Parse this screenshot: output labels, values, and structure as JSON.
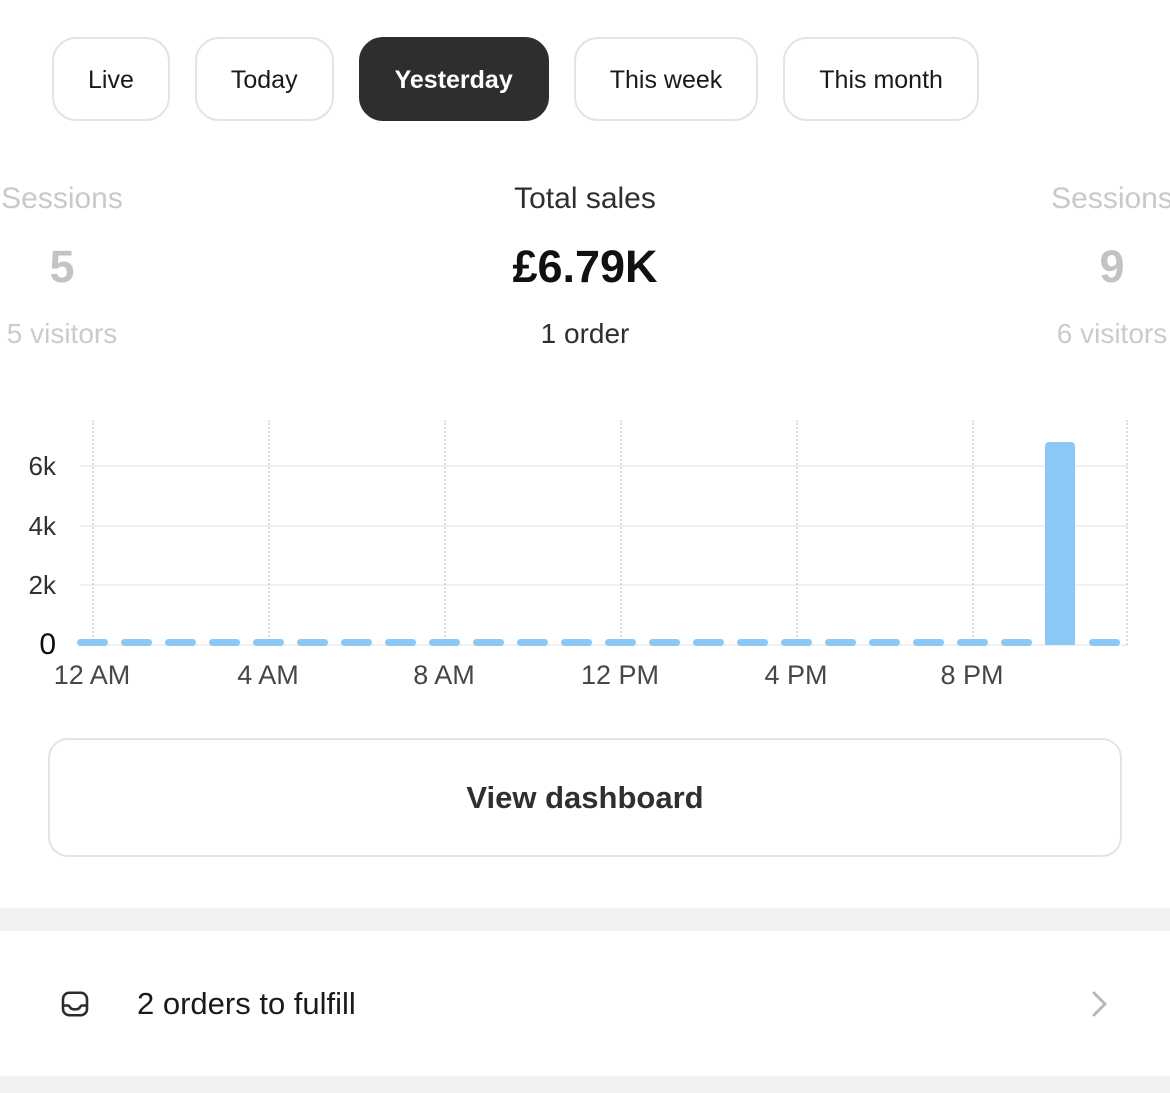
{
  "tabs": [
    {
      "label": "Live",
      "selected": false
    },
    {
      "label": "Today",
      "selected": false
    },
    {
      "label": "Yesterday",
      "selected": true
    },
    {
      "label": "This week",
      "selected": false
    },
    {
      "label": "This month",
      "selected": false
    }
  ],
  "metrics": {
    "left": {
      "label": "Sessions",
      "value": "5",
      "sub": "5 visitors"
    },
    "center": {
      "label": "Total sales",
      "value": "£6.79K",
      "sub": "1 order"
    },
    "right": {
      "label": "Sessions",
      "value": "9",
      "sub": "6 visitors"
    }
  },
  "chart_data": {
    "type": "bar",
    "x_unit": "hour",
    "categories": [
      "12 AM",
      "1 AM",
      "2 AM",
      "3 AM",
      "4 AM",
      "5 AM",
      "6 AM",
      "7 AM",
      "8 AM",
      "9 AM",
      "10 AM",
      "11 AM",
      "12 PM",
      "1 PM",
      "2 PM",
      "3 PM",
      "4 PM",
      "5 PM",
      "6 PM",
      "7 PM",
      "8 PM",
      "9 PM",
      "10 PM",
      "11 PM"
    ],
    "values": [
      0,
      0,
      0,
      0,
      0,
      0,
      0,
      0,
      0,
      0,
      0,
      0,
      0,
      0,
      0,
      0,
      0,
      0,
      0,
      0,
      0,
      0,
      6790,
      0
    ],
    "ylim": [
      0,
      7000
    ],
    "y_ticks": [
      {
        "label": "0",
        "value": 0
      },
      {
        "label": "2k",
        "value": 2000
      },
      {
        "label": "4k",
        "value": 4000
      },
      {
        "label": "6k",
        "value": 6000
      }
    ],
    "x_ticks": [
      {
        "label": "12 AM",
        "hour": 0
      },
      {
        "label": "4 AM",
        "hour": 4
      },
      {
        "label": "8 AM",
        "hour": 8
      },
      {
        "label": "12 PM",
        "hour": 12
      },
      {
        "label": "4 PM",
        "hour": 16
      },
      {
        "label": "8 PM",
        "hour": 20
      },
      {
        "label": "",
        "hour": 23.5
      }
    ],
    "bar_color": "#8CC8F6",
    "grid": true,
    "legend": false
  },
  "dashboard_button": {
    "label": "View dashboard"
  },
  "orders_row": {
    "label": "2 orders to fulfill"
  }
}
